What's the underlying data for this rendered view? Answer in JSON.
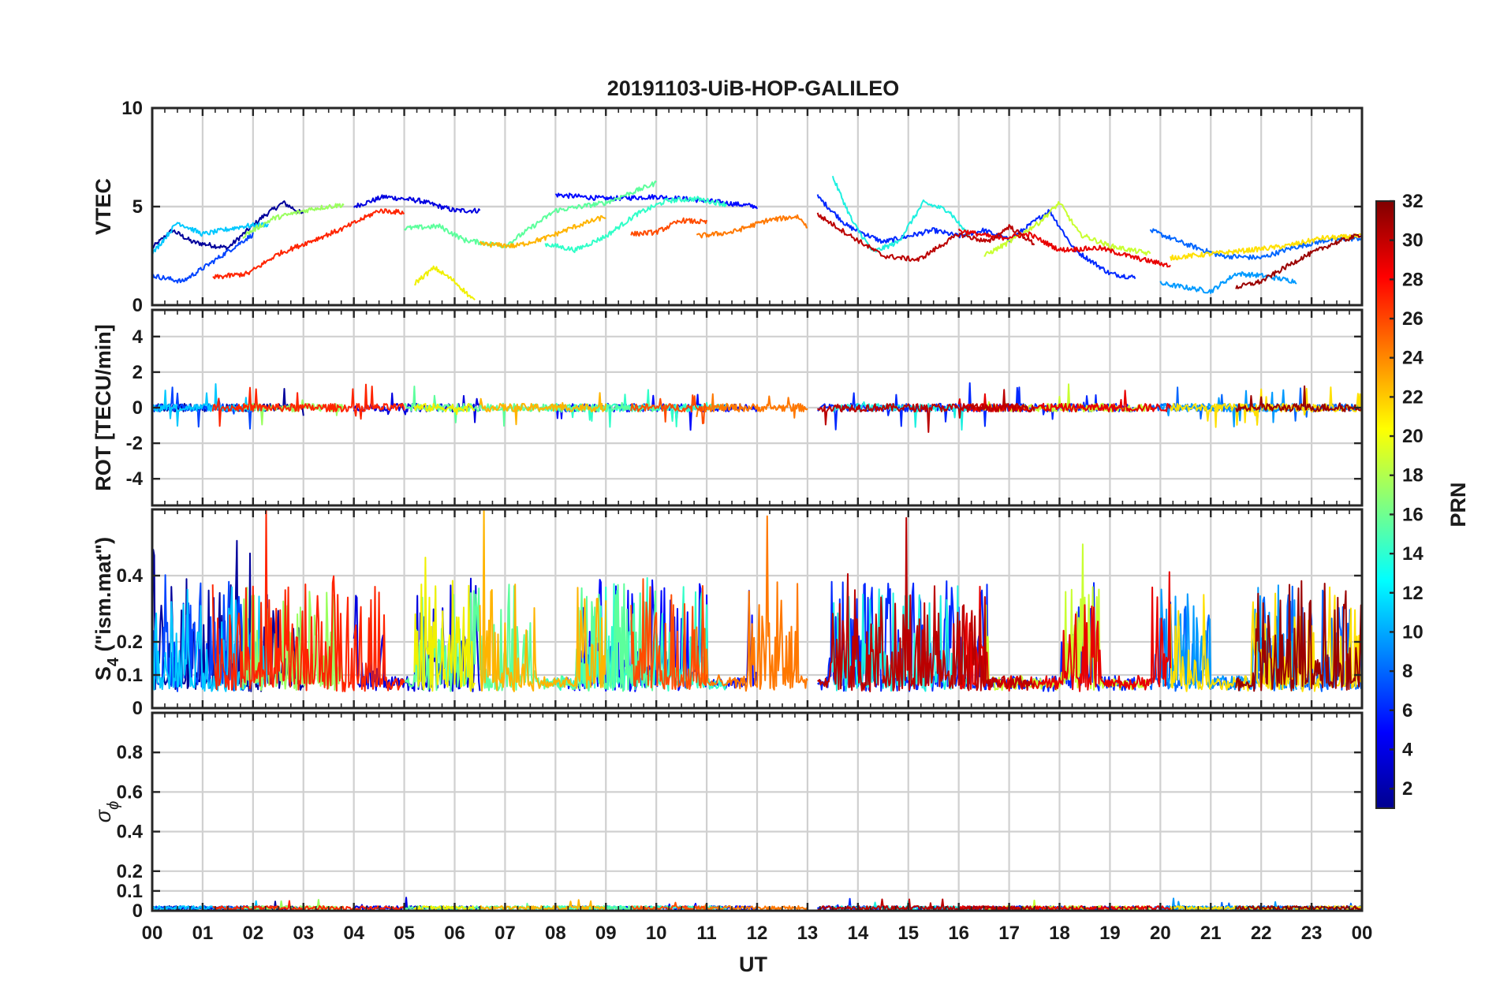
{
  "chart_data": {
    "type": "line",
    "title": "20191103-UiB-HOP-GALILEO",
    "xlabel": "UT",
    "x_tick_labels": [
      "00",
      "01",
      "02",
      "03",
      "04",
      "05",
      "06",
      "07",
      "08",
      "09",
      "10",
      "11",
      "12",
      "13",
      "14",
      "15",
      "16",
      "17",
      "18",
      "19",
      "20",
      "21",
      "22",
      "23",
      "00"
    ],
    "xlim_hours": [
      0,
      24
    ],
    "panels": [
      {
        "name": "vtec",
        "ylabel": "VTEC",
        "ylim": [
          0,
          10
        ],
        "yticks": [
          0,
          5,
          10
        ],
        "ytick_labels": [
          "0",
          "5",
          "10"
        ],
        "grid": true,
        "baseline": 3.5,
        "noise": 0.35,
        "kind": "smooth"
      },
      {
        "name": "rot",
        "ylabel": "ROT [TECU/min]",
        "ylim": [
          -5.5,
          5.5
        ],
        "yticks": [
          -4,
          -2,
          0,
          2,
          4
        ],
        "ytick_labels": [
          "-4",
          "-2",
          "0",
          "2",
          "4"
        ],
        "grid": true,
        "baseline": 0.0,
        "noise": 0.15,
        "kind": "rot"
      },
      {
        "name": "s4",
        "ylabel_main": "S",
        "ylabel_sub": "4",
        "ylabel_rest": " (\"ism.mat\")",
        "ylim": [
          0,
          0.6
        ],
        "yticks": [
          0,
          0.1,
          0.2,
          0.4
        ],
        "ytick_labels": [
          "0",
          "0.1",
          "0.2",
          "0.4"
        ],
        "grid": true,
        "baseline": 0.08,
        "noise": 0.05,
        "kind": "spiky"
      },
      {
        "name": "sigma",
        "ylabel_main": "σ",
        "ylabel_sub": "ϕ",
        "ylim": [
          0,
          1
        ],
        "yticks": [
          0,
          0.1,
          0.2,
          0.4,
          0.6,
          0.8
        ],
        "ytick_labels": [
          "0",
          "0.1",
          "0.2",
          "0.4",
          "0.6",
          "0.8"
        ],
        "grid": true,
        "baseline": 0.01,
        "noise": 0.01,
        "kind": "flat"
      }
    ],
    "series": [
      {
        "prn": 1,
        "color": "#00009b",
        "vtec": [
          [
            0,
            2.9
          ],
          [
            0.4,
            3.8
          ],
          [
            0.8,
            3.2
          ],
          [
            1.5,
            2.9
          ],
          [
            2.2,
            4.5
          ],
          [
            2.6,
            5.2
          ],
          [
            3.0,
            4.6
          ]
        ]
      },
      {
        "prn": 3,
        "color": "#0000e0",
        "vtec": [
          [
            4.0,
            5.0
          ],
          [
            4.6,
            5.5
          ],
          [
            5.3,
            5.3
          ],
          [
            6.0,
            4.8
          ],
          [
            6.5,
            4.8
          ]
        ]
      },
      {
        "prn": 4,
        "color": "#0008ff",
        "vtec": [
          [
            8.0,
            5.6
          ],
          [
            9.0,
            5.4
          ],
          [
            10.0,
            5.5
          ],
          [
            11.0,
            5.3
          ],
          [
            12.0,
            5.0
          ]
        ]
      },
      {
        "prn": 5,
        "color": "#0028ff",
        "vtec": [
          [
            13.2,
            5.5
          ],
          [
            13.8,
            4.0
          ],
          [
            14.5,
            3.2
          ],
          [
            15.5,
            3.8
          ],
          [
            16.0,
            3.5
          ],
          [
            16.5,
            3.8
          ],
          [
            17.0,
            3.3
          ],
          [
            17.8,
            4.8
          ],
          [
            18.3,
            2.8
          ],
          [
            19.0,
            1.6
          ],
          [
            19.5,
            1.4
          ]
        ]
      },
      {
        "prn": 6,
        "color": "#0044ff",
        "vtec": [
          [
            0,
            1.5
          ],
          [
            0.6,
            1.2
          ],
          [
            1.2,
            2.2
          ],
          [
            2.0,
            3.6
          ]
        ]
      },
      {
        "prn": 7,
        "color": "#0066ff",
        "vtec": [
          [
            19.8,
            3.8
          ],
          [
            20.5,
            3.1
          ],
          [
            21.2,
            2.5
          ],
          [
            22.0,
            2.4
          ],
          [
            22.6,
            2.9
          ],
          [
            23.3,
            3.3
          ],
          [
            24.0,
            3.4
          ]
        ]
      },
      {
        "prn": 9,
        "color": "#009aff",
        "vtec": [
          [
            20.0,
            1.1
          ],
          [
            20.5,
            0.9
          ],
          [
            21.0,
            0.7
          ],
          [
            21.5,
            1.6
          ],
          [
            22.0,
            1.5
          ],
          [
            22.7,
            1.2
          ]
        ]
      },
      {
        "prn": 11,
        "color": "#00c8ff",
        "vtec": [
          [
            0,
            2.6
          ],
          [
            0.5,
            4.2
          ],
          [
            1.0,
            3.6
          ],
          [
            1.8,
            4.0
          ],
          [
            2.3,
            4.1
          ]
        ]
      },
      {
        "prn": 13,
        "color": "#1ef0e0",
        "vtec": [
          [
            13.5,
            6.5
          ],
          [
            13.9,
            4.2
          ],
          [
            14.3,
            2.7
          ],
          [
            14.8,
            3.2
          ],
          [
            15.3,
            5.2
          ],
          [
            15.8,
            4.8
          ],
          [
            16.2,
            3.5
          ]
        ]
      },
      {
        "prn": 14,
        "color": "#30ffc8",
        "vtec": [
          [
            7.8,
            3.1
          ],
          [
            8.4,
            2.8
          ],
          [
            9.0,
            3.5
          ],
          [
            9.6,
            4.6
          ],
          [
            10.2,
            5.3
          ],
          [
            10.8,
            5.4
          ],
          [
            11.4,
            5.1
          ]
        ]
      },
      {
        "prn": 16,
        "color": "#5cff9c",
        "vtec": [
          [
            5.0,
            3.9
          ],
          [
            5.7,
            4.0
          ],
          [
            6.2,
            3.3
          ],
          [
            7.0,
            3.0
          ],
          [
            8.0,
            4.8
          ],
          [
            9.0,
            5.2
          ],
          [
            10.0,
            6.2
          ]
        ]
      },
      {
        "prn": 18,
        "color": "#9aff5e",
        "vtec": [
          [
            1.8,
            3.5
          ],
          [
            2.4,
            4.4
          ],
          [
            3.2,
            4.9
          ],
          [
            3.8,
            5.1
          ]
        ]
      },
      {
        "prn": 19,
        "color": "#c8ff30",
        "vtec": [
          [
            16.5,
            2.5
          ],
          [
            17.0,
            3.2
          ],
          [
            17.6,
            4.2
          ],
          [
            18.0,
            5.2
          ],
          [
            18.4,
            3.6
          ],
          [
            19.0,
            3.0
          ],
          [
            19.8,
            2.6
          ]
        ]
      },
      {
        "prn": 20,
        "color": "#f0f000",
        "vtec": [
          [
            5.2,
            1.1
          ],
          [
            5.6,
            1.9
          ],
          [
            6.0,
            1.2
          ],
          [
            6.4,
            0.2
          ]
        ]
      },
      {
        "prn": 21,
        "color": "#ffe000",
        "vtec": [
          [
            20.2,
            2.4
          ],
          [
            21.0,
            2.6
          ],
          [
            21.8,
            2.8
          ],
          [
            22.5,
            3.0
          ],
          [
            23.2,
            3.4
          ],
          [
            24.0,
            3.5
          ]
        ]
      },
      {
        "prn": 22,
        "color": "#ffb400",
        "vtec": [
          [
            6.5,
            3.1
          ],
          [
            7.2,
            3.0
          ],
          [
            7.8,
            3.4
          ],
          [
            8.4,
            4.0
          ],
          [
            9.0,
            4.5
          ]
        ]
      },
      {
        "prn": 24,
        "color": "#ff7800",
        "vtec": [
          [
            10.8,
            3.5
          ],
          [
            11.5,
            3.7
          ],
          [
            12.2,
            4.3
          ],
          [
            12.8,
            4.5
          ],
          [
            13.0,
            4.0
          ]
        ]
      },
      {
        "prn": 25,
        "color": "#ff4c00",
        "vtec": [
          [
            9.5,
            3.6
          ],
          [
            10.0,
            3.7
          ],
          [
            10.5,
            4.3
          ],
          [
            11.0,
            4.2
          ]
        ]
      },
      {
        "prn": 26,
        "color": "#ff2400",
        "vtec": [
          [
            1.2,
            1.4
          ],
          [
            1.9,
            1.6
          ],
          [
            2.5,
            2.6
          ],
          [
            3.2,
            3.3
          ],
          [
            3.8,
            3.9
          ],
          [
            4.5,
            4.8
          ],
          [
            5.0,
            4.7
          ]
        ]
      },
      {
        "prn": 27,
        "color": "#e80000",
        "vtec": [
          [
            16.0,
            3.8
          ],
          [
            16.8,
            3.4
          ],
          [
            17.4,
            3.6
          ],
          [
            18.0,
            2.8
          ],
          [
            18.8,
            2.9
          ],
          [
            19.5,
            2.4
          ],
          [
            20.2,
            2.0
          ]
        ]
      },
      {
        "prn": 30,
        "color": "#bb0000",
        "vtec": [
          [
            13.2,
            4.6
          ],
          [
            13.8,
            3.6
          ],
          [
            14.5,
            2.5
          ],
          [
            15.2,
            2.3
          ],
          [
            16.0,
            3.6
          ],
          [
            16.6,
            3.2
          ],
          [
            17.0,
            4.0
          ],
          [
            17.5,
            3.1
          ]
        ]
      },
      {
        "prn": 31,
        "color": "#9b0000",
        "vtec": [
          [
            21.5,
            0.9
          ],
          [
            22.0,
            1.2
          ],
          [
            22.8,
            2.4
          ],
          [
            23.4,
            3.1
          ],
          [
            24.0,
            3.6
          ]
        ]
      }
    ],
    "s4_active_periods_hours": [
      [
        0,
        4.6
      ],
      [
        5.2,
        7.6
      ],
      [
        8.4,
        11.0
      ],
      [
        11.8,
        12.8
      ],
      [
        13.4,
        16.6
      ],
      [
        18.0,
        18.8
      ],
      [
        19.8,
        21.0
      ],
      [
        21.8,
        24
      ]
    ],
    "colorbar": {
      "label": "PRN",
      "range": [
        1,
        32
      ],
      "tick_labels": [
        "2",
        "4",
        "6",
        "8",
        "10",
        "12",
        "14",
        "16",
        "18",
        "20",
        "22",
        "24",
        "26",
        "28",
        "30",
        "32"
      ],
      "colormap": [
        "#00008f",
        "#0000ff",
        "#0080ff",
        "#00ffff",
        "#80ff80",
        "#ffff00",
        "#ff8000",
        "#ff0000",
        "#800000"
      ]
    }
  }
}
